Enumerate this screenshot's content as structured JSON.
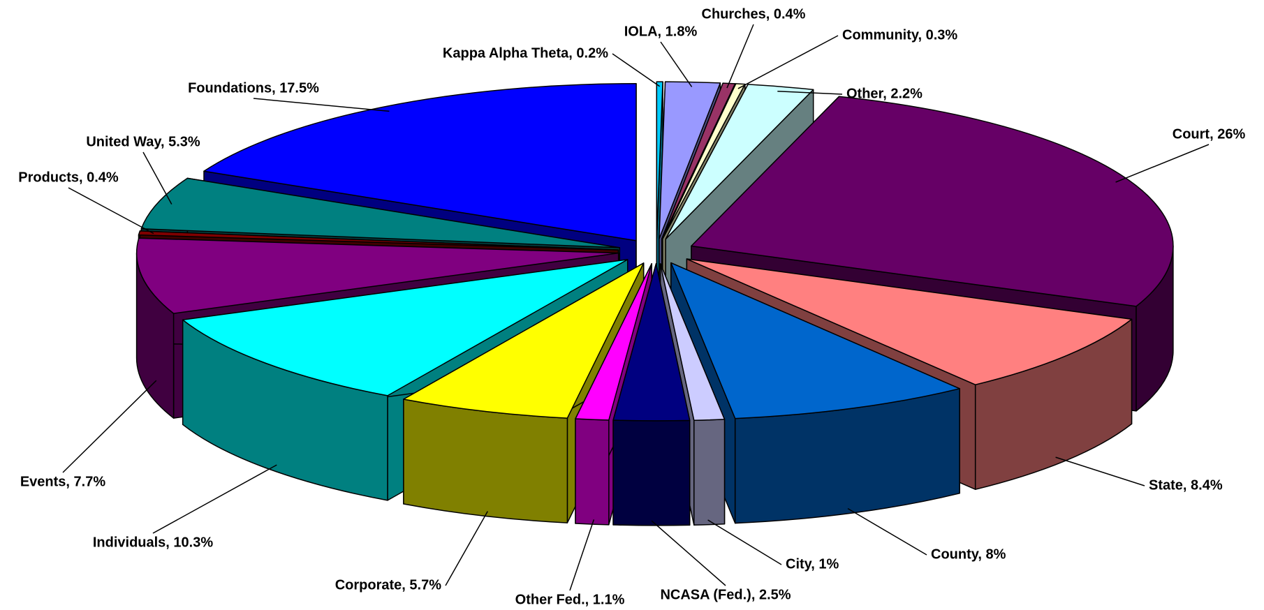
{
  "chart_data": {
    "type": "pie",
    "values": [
      0.2,
      1.8,
      0.4,
      0.3,
      2.2,
      26,
      8.4,
      8,
      1,
      2.5,
      1.1,
      5.7,
      10.3,
      7.7,
      0.4,
      5.3,
      17.5
    ],
    "value_labels": [
      "Kappa Alpha Theta, 0.2%",
      "IOLA, 1.8%",
      "Churches, 0.4%",
      "Community, 0.3%",
      "Other, 2.2%",
      "Court, 26%",
      "State, 8.4%",
      "County, 8%",
      "City, 1%",
      "NCASA (Fed.), 2.5%",
      "Other Fed., 1.1%",
      "Corporate, 5.7%",
      "Individuals, 10.3%",
      "Events, 7.7%",
      "Products, 0.4%",
      "United Way, 5.3%",
      "Foundations, 17.5%"
    ],
    "colors": [
      "#00ccff",
      "#9999ff",
      "#993366",
      "#ffffcc",
      "#ccffff",
      "#660066",
      "#ff8080",
      "#0066cc",
      "#ccccff",
      "#000080",
      "#ff00ff",
      "#ffff00",
      "#00ffff",
      "#800080",
      "#800000",
      "#008080",
      "#0000ff"
    ]
  }
}
